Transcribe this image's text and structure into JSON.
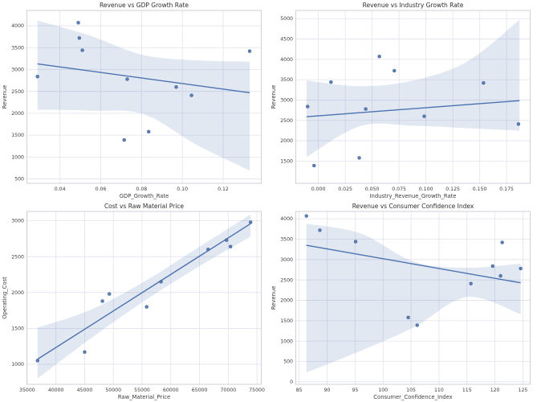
{
  "figure": {
    "background": "#ffffff",
    "layout": "2x2-subplot-grid"
  },
  "style": {
    "accent_color": "#4c72b0",
    "point_edge_color": "#33507e",
    "band_color": "rgba(76,114,176,0.16)",
    "grid_color": "#e1e3ed",
    "spine_color": "#c9ccd6",
    "title_color": "#2f2f33",
    "tick_color": "#3d3d42"
  },
  "chart_data": [
    {
      "type": "scatter",
      "title": "Revenue vs GDP Growth Rate",
      "xlabel": "GDP_Growth_Rate",
      "ylabel": "Revenue",
      "xlim": [
        0.0238,
        0.1387
      ],
      "ylim": [
        400,
        4350
      ],
      "xticks": [
        0.04,
        0.06,
        0.08,
        0.1,
        0.12
      ],
      "xtick_labels": [
        "0.04",
        "0.06",
        "0.08",
        "0.10",
        "0.12"
      ],
      "yticks": [
        500,
        1000,
        1500,
        2000,
        2500,
        3000,
        3500,
        4000
      ],
      "ytick_labels": [
        "500",
        "1000",
        "1500",
        "2000",
        "2500",
        "3000",
        "3500",
        "4000"
      ],
      "grid": true,
      "legend": "none",
      "points": [
        [
          0.029,
          2840
        ],
        [
          0.0495,
          3720
        ],
        [
          0.049,
          4070
        ],
        [
          0.051,
          3440
        ],
        [
          0.0715,
          1390
        ],
        [
          0.073,
          2780
        ],
        [
          0.0835,
          1580
        ],
        [
          0.097,
          2600
        ],
        [
          0.1045,
          2410
        ],
        [
          0.133,
          3420
        ]
      ],
      "regression_line": {
        "x": [
          0.029,
          0.133
        ],
        "y": [
          3130,
          2470
        ]
      },
      "confidence_band": {
        "x": [
          0.029,
          0.055,
          0.081,
          0.107,
          0.133
        ],
        "upper": [
          4120,
          3770,
          3330,
          3210,
          3180
        ],
        "lower": [
          2080,
          2060,
          1980,
          1280,
          690
        ]
      }
    },
    {
      "type": "scatter",
      "title": "Revenue vs Industry Growth Rate",
      "xlabel": "Industry_Revenue_Growth_Rate",
      "ylabel": "Revenue",
      "xlim": [
        -0.021,
        0.1969
      ],
      "ylim": [
        955,
        5200
      ],
      "xticks": [
        0.0,
        0.025,
        0.05,
        0.075,
        0.1,
        0.125,
        0.15,
        0.175
      ],
      "xtick_labels": [
        "0.000",
        "0.025",
        "0.050",
        "0.075",
        "0.100",
        "0.125",
        "0.150",
        "0.175"
      ],
      "yticks": [
        1500,
        2000,
        2500,
        3000,
        3500,
        4000,
        4500,
        5000
      ],
      "ytick_labels": [
        "1500",
        "2000",
        "2500",
        "3000",
        "3500",
        "4000",
        "4500",
        "5000"
      ],
      "grid": true,
      "legend": "none",
      "points": [
        [
          -0.01,
          2840
        ],
        [
          -0.004,
          1390
        ],
        [
          0.0117,
          3440
        ],
        [
          0.038,
          1580
        ],
        [
          0.044,
          2780
        ],
        [
          0.0567,
          4070
        ],
        [
          0.0706,
          3720
        ],
        [
          0.0984,
          2600
        ],
        [
          0.1535,
          3420
        ],
        [
          0.186,
          2410
        ]
      ],
      "regression_line": {
        "x": [
          -0.011,
          0.187
        ],
        "y": [
          2590,
          2985
        ]
      },
      "confidence_band": {
        "x": [
          -0.011,
          0.039,
          0.088,
          0.138,
          0.187
        ],
        "upper": [
          3480,
          3340,
          3480,
          3940,
          4970
        ],
        "lower": [
          1600,
          2360,
          2370,
          2310,
          2250
        ]
      }
    },
    {
      "type": "scatter",
      "title": "Cost vs Raw Material Price",
      "xlabel": "Raw_Material_Price",
      "ylabel": "Operating_Cost",
      "xlim": [
        34945,
        75755
      ],
      "ylim": [
        720,
        3130
      ],
      "xticks": [
        35000,
        40000,
        45000,
        50000,
        55000,
        60000,
        65000,
        70000,
        75000
      ],
      "xtick_labels": [
        "35000",
        "40000",
        "45000",
        "50000",
        "55000",
        "60000",
        "65000",
        "70000",
        "75000"
      ],
      "yticks": [
        1000,
        1500,
        2000,
        2500,
        3000
      ],
      "ytick_labels": [
        "1000",
        "1500",
        "2000",
        "2500",
        "3000"
      ],
      "grid": true,
      "legend": "none",
      "points": [
        [
          36800,
          1050
        ],
        [
          45000,
          1170
        ],
        [
          48100,
          1880
        ],
        [
          49300,
          1980
        ],
        [
          55800,
          1800
        ],
        [
          58300,
          2150
        ],
        [
          66500,
          2600
        ],
        [
          69700,
          2730
        ],
        [
          70400,
          2640
        ],
        [
          73900,
          2980
        ]
      ],
      "regression_line": {
        "x": [
          36800,
          73900
        ],
        "y": [
          1070,
          2960
        ]
      },
      "confidence_band": {
        "x": [
          36800,
          46075,
          55350,
          64625,
          73900
        ],
        "upper": [
          1510,
          1760,
          2150,
          2620,
          3090
        ],
        "lower": [
          800,
          1360,
          1880,
          2350,
          2780
        ]
      }
    },
    {
      "type": "scatter",
      "title": "Revenue vs Consumer Confidence Index",
      "xlabel": "Consumer_Confidence_Index",
      "ylabel": "Revenue",
      "xlim": [
        84.4,
        126.3
      ],
      "ylim": [
        -60,
        4180
      ],
      "xticks": [
        85,
        90,
        95,
        100,
        105,
        110,
        115,
        120,
        125
      ],
      "xtick_labels": [
        "85",
        "90",
        "95",
        "100",
        "105",
        "110",
        "115",
        "120",
        "125"
      ],
      "yticks": [
        0,
        500,
        1000,
        1500,
        2000,
        2500,
        3000,
        3500,
        4000
      ],
      "ytick_labels": [
        "0",
        "500",
        "1000",
        "1500",
        "2000",
        "2500",
        "3000",
        "3500",
        "4000"
      ],
      "grid": true,
      "legend": "none",
      "points": [
        [
          86.3,
          4070
        ],
        [
          88.7,
          3720
        ],
        [
          95.1,
          3440
        ],
        [
          104.5,
          1580
        ],
        [
          106.1,
          1390
        ],
        [
          115.7,
          2410
        ],
        [
          119.6,
          2840
        ],
        [
          121.0,
          2600
        ],
        [
          121.3,
          3420
        ],
        [
          124.6,
          2780
        ]
      ],
      "regression_line": {
        "x": [
          86.3,
          124.6
        ],
        "y": [
          3350,
          2430
        ]
      },
      "confidence_band": {
        "x": [
          86.3,
          96,
          105.5,
          115,
          124.6
        ],
        "upper": [
          3880,
          3640,
          2950,
          2800,
          2900
        ],
        "lower": [
          230,
          760,
          1340,
          2080,
          1660
        ]
      }
    }
  ]
}
